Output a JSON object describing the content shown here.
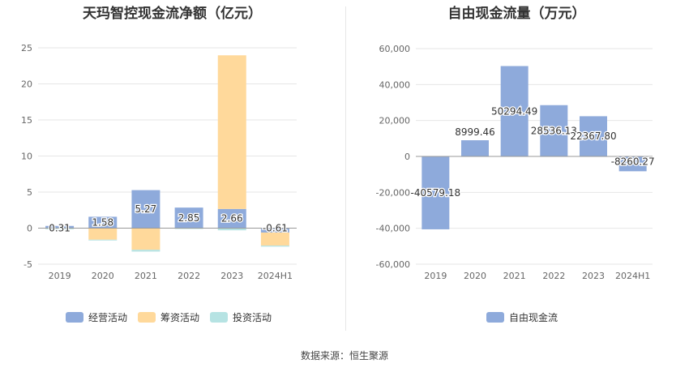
{
  "source": "数据来源：恒生聚源",
  "chart_data": [
    {
      "type": "bar",
      "title": "天玛智控现金流净额（亿元）",
      "categories": [
        "2019",
        "2020",
        "2021",
        "2022",
        "2023",
        "2024H1"
      ],
      "series": [
        {
          "name": "经营活动",
          "color": "#8eaadb",
          "values": [
            0.31,
            1.58,
            5.27,
            2.85,
            2.66,
            -0.61
          ]
        },
        {
          "name": "筹资活动",
          "color": "#ffd99b",
          "values": [
            0.0,
            -1.6,
            -3.0,
            0.0,
            21.3,
            -1.8
          ]
        },
        {
          "name": "投资活动",
          "color": "#b6e3e3",
          "values": [
            -0.15,
            -0.05,
            -0.25,
            -0.05,
            -0.3,
            -0.15
          ]
        }
      ],
      "data_labels": [
        "0.31",
        "1.58",
        "5.27",
        "2.85",
        "2.66",
        "-0.61"
      ],
      "ylim": [
        -5,
        25
      ],
      "yticks": [
        -5,
        0,
        5,
        10,
        15,
        20,
        25
      ],
      "grid": true,
      "legend": "bottom"
    },
    {
      "type": "bar",
      "title": "自由现金流量（万元）",
      "categories": [
        "2019",
        "2020",
        "2021",
        "2022",
        "2023",
        "2024H1"
      ],
      "series": [
        {
          "name": "自由现金流",
          "color": "#8eaadb",
          "values": [
            -40579.18,
            8999.46,
            50294.49,
            28536.13,
            22367.8,
            -8260.27
          ]
        }
      ],
      "data_labels": [
        "-40579.18",
        "8999.46",
        "50294.49",
        "28536.13",
        "22367.80",
        "-8260.27"
      ],
      "ylim": [
        -60000,
        60000
      ],
      "yticks": [
        -60000,
        -40000,
        -20000,
        0,
        20000,
        40000,
        60000
      ],
      "ytick_labels": [
        "-60,000",
        "-40,000",
        "-20,000",
        "0",
        "20,000",
        "40,000",
        "60,000"
      ],
      "grid": true,
      "legend": "bottom"
    }
  ]
}
